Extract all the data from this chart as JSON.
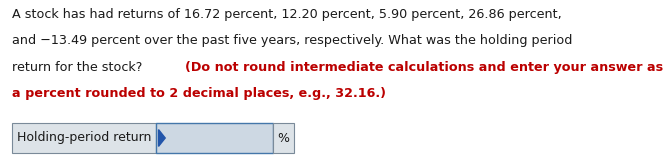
{
  "background_color": "#ffffff",
  "line1_black": "A stock has had returns of 16.72 percent, 12.20 percent, 5.90 percent, 26.86 percent,",
  "line2_black": "and −13.49 percent over the past five years, respectively. What was the holding period",
  "line3_black": "return for the stock? ",
  "line3_red": "(Do not round intermediate calculations and enter your answer as",
  "line4_red": "a percent rounded to 2 decimal places, e.g., 32.16.)",
  "label_text": "Holding-period return",
  "percent_text": "%",
  "label_bg": "#dde3e8",
  "input_bg": "#cdd8e3",
  "border_color": "#7a8a99",
  "text_color_black": "#1a1a1a",
  "text_color_red": "#bb0000",
  "font_size_body": 9.2,
  "font_size_table": 9.0,
  "cursor_color": "#2255aa"
}
